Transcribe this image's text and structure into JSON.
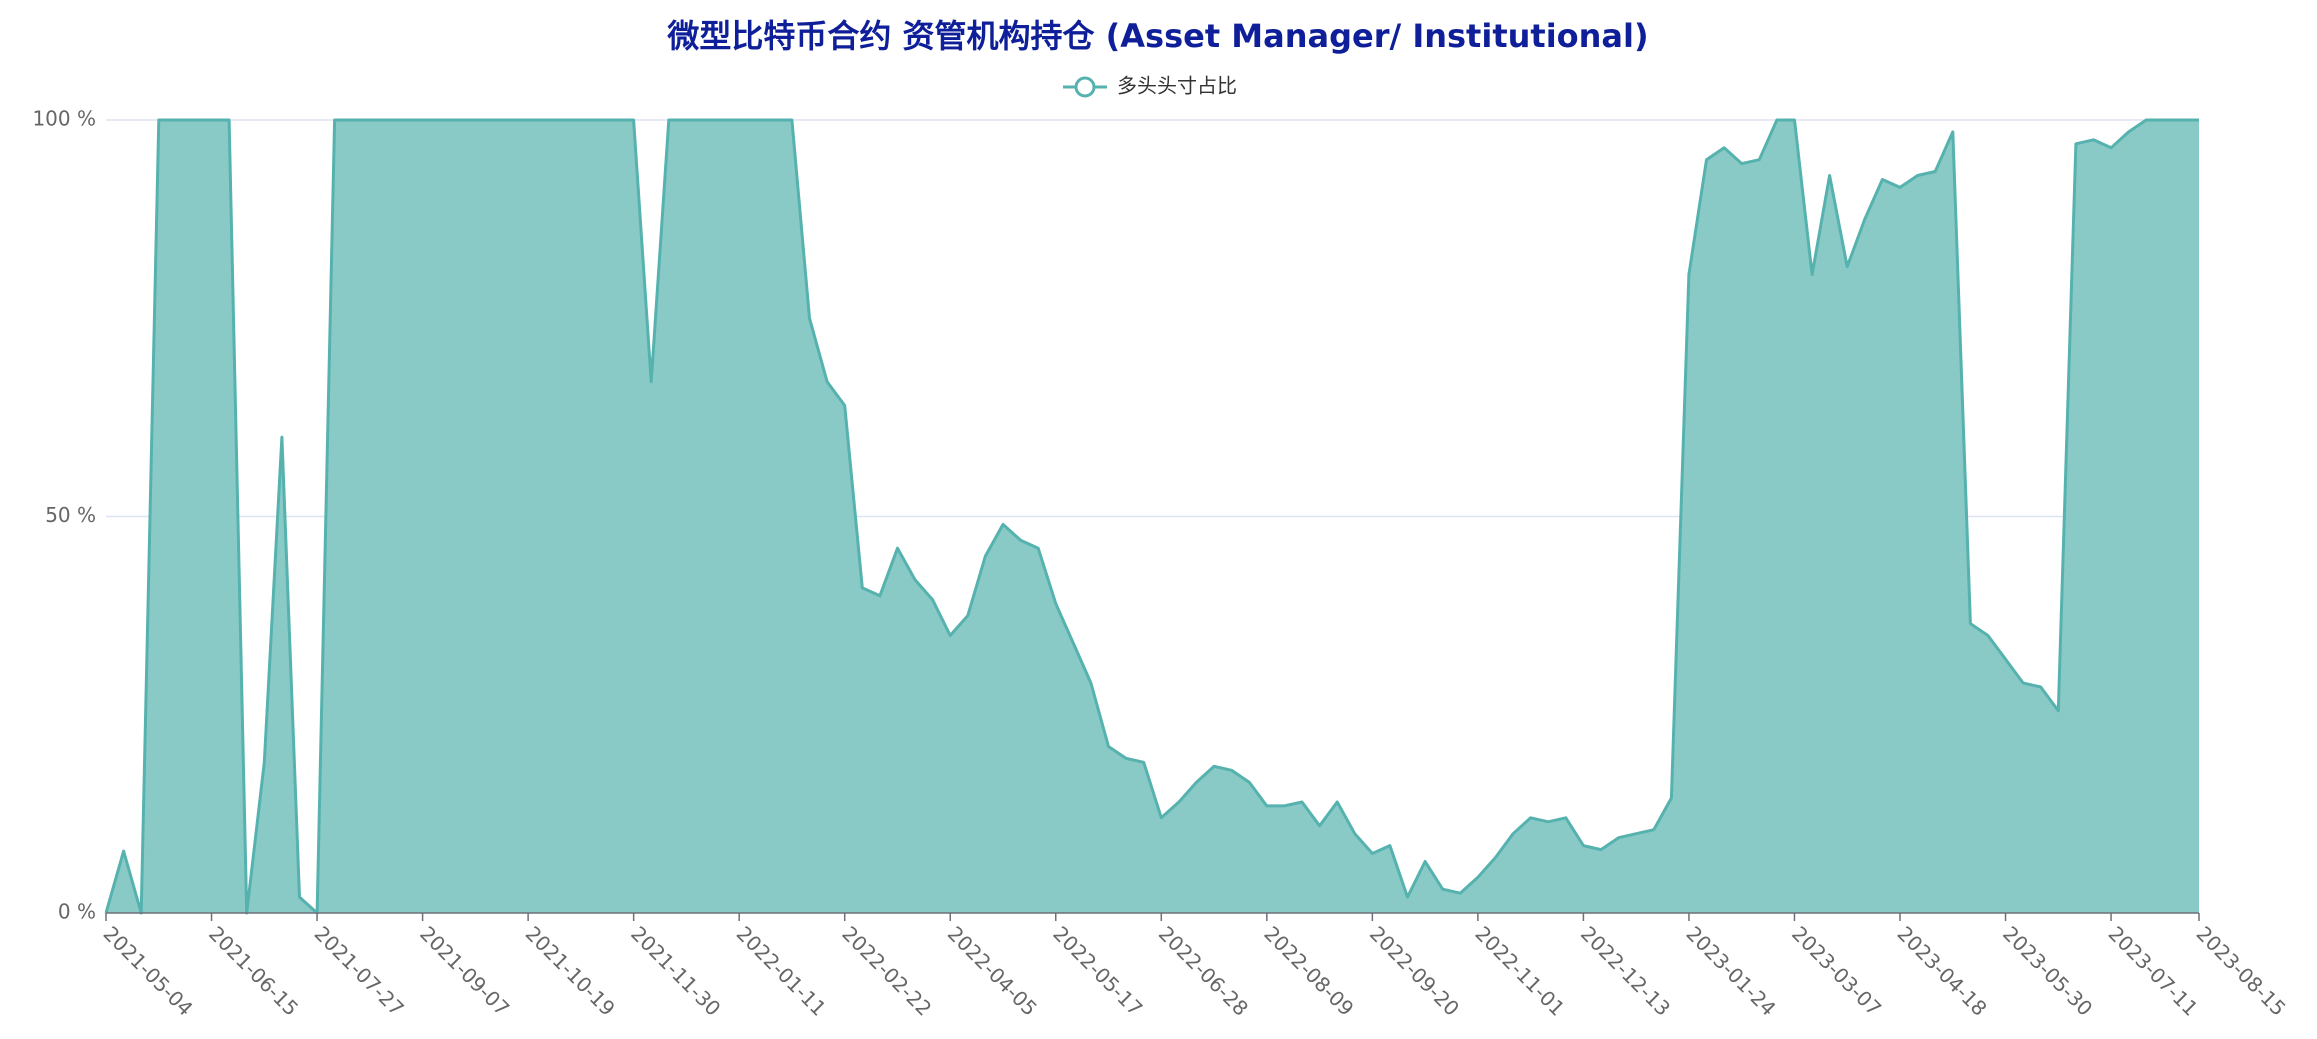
{
  "chart_data": {
    "type": "area",
    "title": "微型比特币合约 资管机构持仓 (Asset Manager/ Institutional)",
    "categories": [
      "2021-05-04",
      null,
      null,
      null,
      null,
      null,
      "2021-06-15",
      null,
      null,
      null,
      null,
      null,
      "2021-07-27",
      null,
      null,
      null,
      null,
      null,
      "2021-09-07",
      null,
      null,
      null,
      null,
      null,
      "2021-10-19",
      null,
      null,
      null,
      null,
      null,
      "2021-11-30",
      null,
      null,
      null,
      null,
      null,
      "2022-01-11",
      null,
      null,
      null,
      null,
      null,
      "2022-02-22",
      null,
      null,
      null,
      null,
      null,
      "2022-04-05",
      null,
      null,
      null,
      null,
      null,
      "2022-05-17",
      null,
      null,
      null,
      null,
      null,
      "2022-06-28",
      null,
      null,
      null,
      null,
      null,
      "2022-08-09",
      null,
      null,
      null,
      null,
      null,
      "2022-09-20",
      null,
      null,
      null,
      null,
      null,
      "2022-11-01",
      null,
      null,
      null,
      null,
      null,
      "2022-12-13",
      null,
      null,
      null,
      null,
      null,
      "2023-01-24",
      null,
      null,
      null,
      null,
      null,
      "2023-03-07",
      null,
      null,
      null,
      null,
      null,
      "2023-04-18",
      null,
      null,
      null,
      null,
      null,
      "2023-05-30",
      null,
      null,
      null,
      null,
      null,
      "2023-07-11",
      null,
      null,
      null,
      null,
      "2023-08-15"
    ],
    "series": [
      {
        "name": "多头头寸占比",
        "color": "#56b2ae",
        "fill_color": "#89cac6",
        "values": [
          0,
          7.8,
          0,
          100,
          100,
          100,
          100,
          100,
          0,
          19,
          60,
          2,
          0,
          100,
          100,
          100,
          100,
          100,
          100,
          100,
          100,
          100,
          100,
          100,
          100,
          100,
          100,
          100,
          100,
          100,
          100,
          67,
          100,
          100,
          100,
          100,
          100,
          100,
          100,
          100,
          75,
          67,
          64,
          41,
          40,
          46,
          42,
          39.5,
          35,
          37.5,
          45,
          49,
          47,
          46,
          39,
          34,
          29,
          21,
          19.5,
          19,
          12,
          14,
          16.5,
          18.5,
          18,
          16.5,
          13.5,
          13.5,
          14,
          11,
          14,
          10,
          7.5,
          8.5,
          2,
          6.5,
          3,
          2.5,
          4.5,
          7,
          10,
          12,
          11.5,
          12,
          8.5,
          8,
          9.5,
          10,
          10.5,
          14.5,
          80.5,
          95,
          96.5,
          94.5,
          95,
          100,
          100,
          80.5,
          93,
          81.5,
          87.5,
          92.5,
          91.5,
          93,
          93.5,
          98.5,
          36.5,
          35,
          32,
          29,
          28.5,
          25.5,
          97,
          97.5,
          96.5,
          98.5,
          100,
          100,
          100,
          100
        ]
      }
    ],
    "ylim": [
      0,
      100
    ],
    "yticks": [
      {
        "value": 0,
        "label": "0 %"
      },
      {
        "value": 50,
        "label": "50 %"
      },
      {
        "value": 100,
        "label": "100 %"
      }
    ],
    "grid": true,
    "legend": "top"
  }
}
